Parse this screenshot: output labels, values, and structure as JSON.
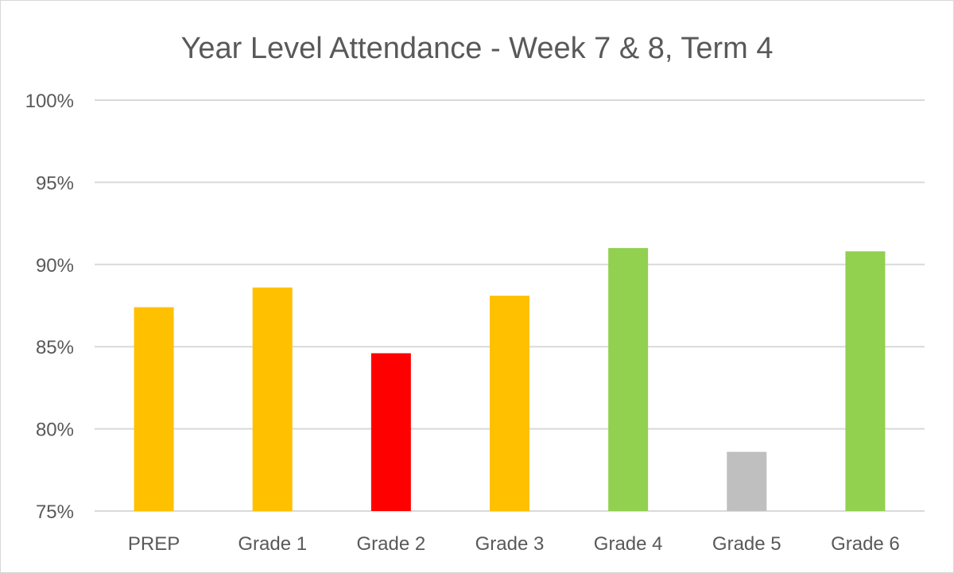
{
  "chart_data": {
    "type": "bar",
    "title": "Year Level Attendance - Week 7 & 8, Term 4",
    "xlabel": "",
    "ylabel": "",
    "categories": [
      "PREP",
      "Grade 1",
      "Grade 2",
      "Grade 3",
      "Grade 4",
      "Grade 5",
      "Grade 6"
    ],
    "values": [
      87.4,
      88.6,
      84.6,
      88.1,
      91.0,
      78.6,
      90.8
    ],
    "bar_colors": [
      "#ffc000",
      "#ffc000",
      "#ff0000",
      "#ffc000",
      "#92d050",
      "#bfbfbf",
      "#92d050"
    ],
    "ylim": [
      75,
      100
    ],
    "yticks": [
      75,
      80,
      85,
      90,
      95,
      100
    ],
    "ytick_labels": [
      "75%",
      "80%",
      "85%",
      "90%",
      "95%",
      "100%"
    ],
    "grid": true,
    "legend": "none"
  },
  "colors": {
    "gridline": "#d9d9d9",
    "text": "#595959",
    "border": "#d9d9d9"
  }
}
